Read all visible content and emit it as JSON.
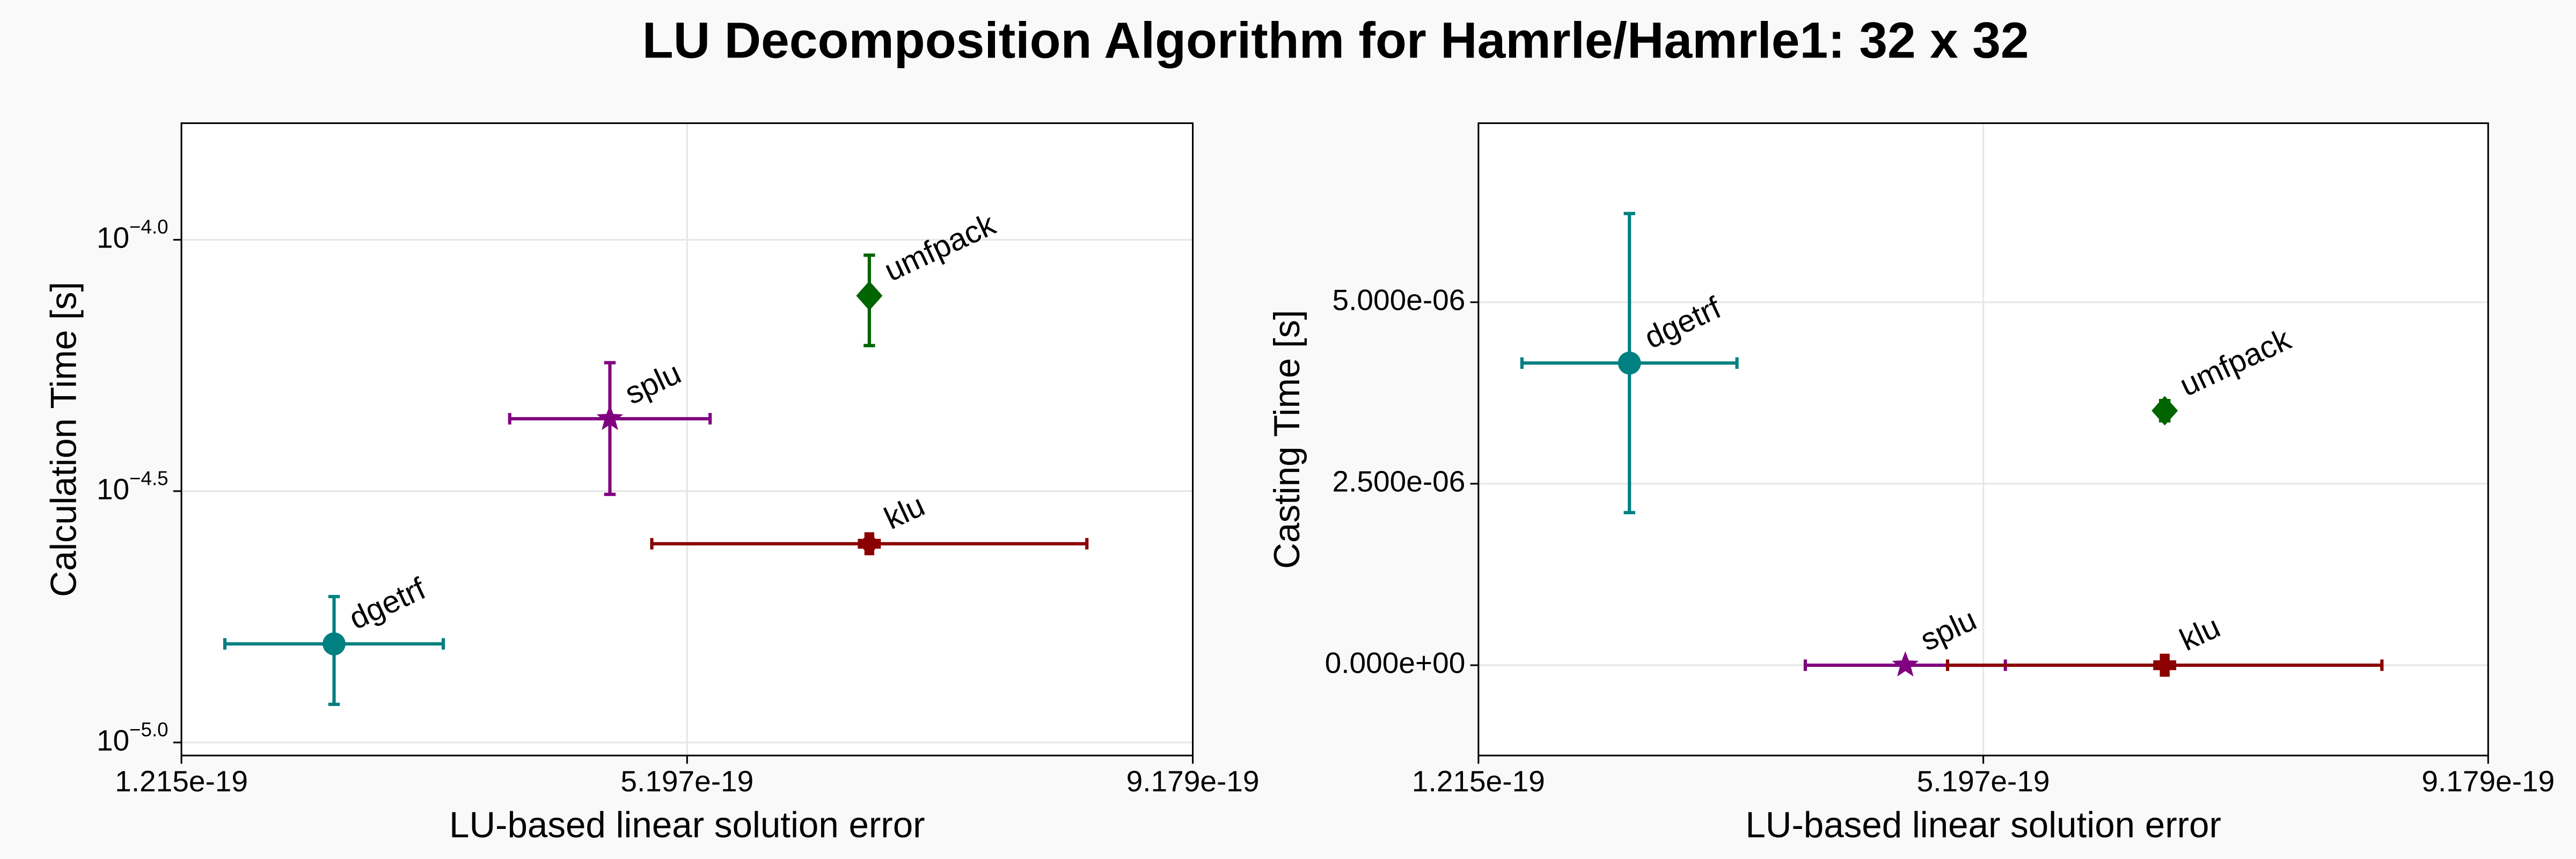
{
  "title": "LU Decomposition Algorithm for Hamrle/Hamrle1: 32 x 32",
  "chart_data": [
    {
      "type": "scatter",
      "xlabel": "LU-based linear solution error",
      "ylabel": "Calculation Time [s]",
      "xlim": [
        1.215e-19,
        9.179e-19
      ],
      "xticks": [
        1.215e-19,
        5.197e-19,
        9.179e-19
      ],
      "ylim": [
        9.42e-06,
        0.0001706
      ],
      "yscale": "log",
      "yticks": [
        {
          "value": 1e-05,
          "label": "10^−5.0"
        },
        {
          "value": 3.1623e-05,
          "label": "10^−4.5"
        },
        {
          "value": 0.0001,
          "label": "10^−4.0"
        }
      ],
      "grid": true,
      "series": [
        {
          "name": "dgetrf",
          "color": "#008080",
          "marker": "circle",
          "x": [
            2.417e-19
          ],
          "values": [
            1.571e-05
          ],
          "xerr": [
            8.6e-20
          ],
          "yerr": [
            3.8e-06
          ]
        },
        {
          "name": "splu",
          "color": "#800080",
          "marker": "star",
          "x": [
            4.589e-19
          ],
          "values": [
            4.406e-05
          ],
          "xerr": [
            7.89e-20
          ],
          "yerr": [
            1.29e-05
          ]
        },
        {
          "name": "umfpack",
          "color": "#006400",
          "marker": "diamond",
          "x": [
            6.632e-19
          ],
          "values": [
            7.74e-05
          ],
          "xerr": [
            0
          ],
          "yerr": [
            1.58e-05
          ]
        },
        {
          "name": "klu",
          "color": "#8b0000",
          "marker": "plus",
          "x": [
            6.632e-19
          ],
          "values": [
            2.485e-05
          ],
          "xerr": [
            1.713e-19
          ],
          "yerr": [
            5e-07
          ]
        }
      ]
    },
    {
      "type": "scatter",
      "xlabel": "LU-based linear solution error",
      "ylabel": "Casting Time [s]",
      "xlim": [
        1.215e-19,
        9.179e-19
      ],
      "xticks": [
        1.215e-19,
        5.197e-19,
        9.179e-19
      ],
      "ylim": [
        -1.244e-06,
        7.466e-06
      ],
      "yticks": [
        {
          "value": 0,
          "label": "0.000e+00"
        },
        {
          "value": 2.5e-06,
          "label": "2.500e-06"
        },
        {
          "value": 5e-06,
          "label": "5.000e-06"
        }
      ],
      "grid": true,
      "series": [
        {
          "name": "dgetrf",
          "color": "#008080",
          "marker": "circle",
          "x": [
            2.406e-19
          ],
          "values": [
            4.162e-06
          ],
          "xerr": [
            8.48e-20
          ],
          "yerr": [
            2.06e-06
          ]
        },
        {
          "name": "splu",
          "color": "#800080",
          "marker": "star",
          "x": [
            4.582e-19
          ],
          "values": [
            0
          ],
          "xerr": [
            7.89e-20
          ],
          "yerr": [
            0
          ]
        },
        {
          "name": "umfpack",
          "color": "#006400",
          "marker": "diamond",
          "x": [
            6.628e-19
          ],
          "values": [
            3.506e-06
          ],
          "xerr": [
            0
          ],
          "yerr": [
            1.4e-07
          ]
        },
        {
          "name": "klu",
          "color": "#8b0000",
          "marker": "plus",
          "x": [
            6.628e-19
          ],
          "values": [
            0
          ],
          "xerr": [
            1.713e-19
          ],
          "yerr": [
            0
          ]
        }
      ]
    }
  ]
}
